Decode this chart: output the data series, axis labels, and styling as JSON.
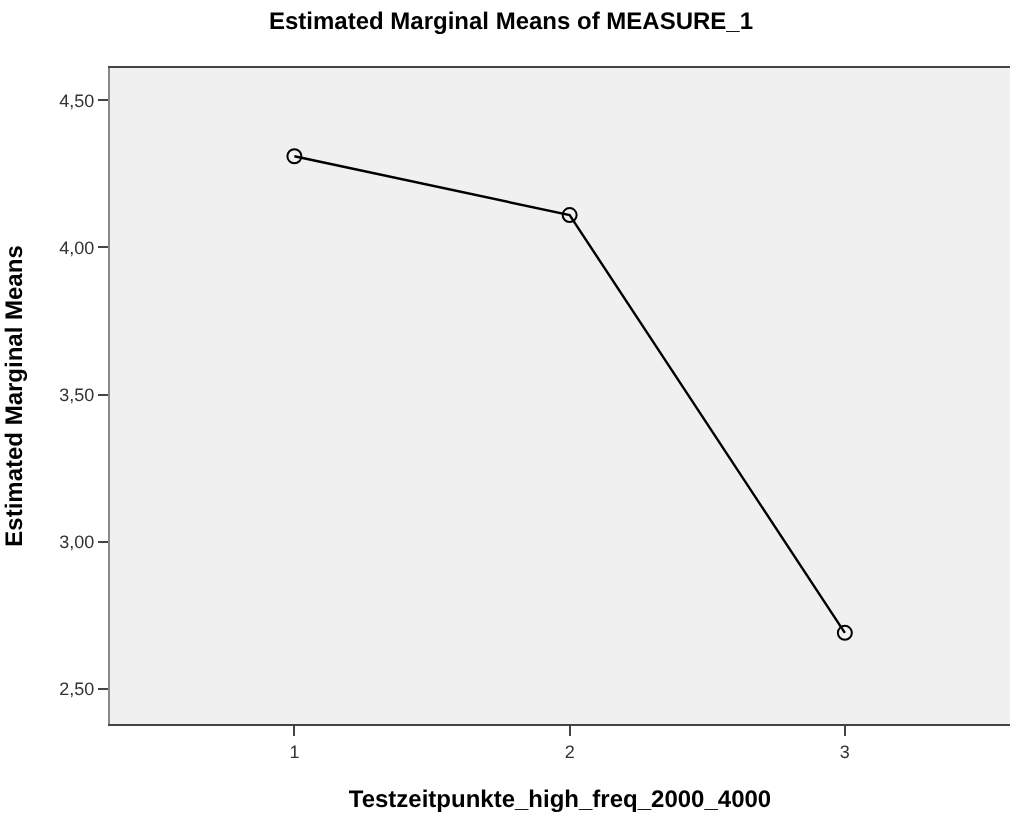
{
  "chart_data": {
    "type": "line",
    "title": "Estimated Marginal Means of MEASURE_1",
    "xlabel": "Testzeitpunkte_high_freq_2000_4000",
    "ylabel": "Estimated Marginal Means",
    "x": [
      1,
      2,
      3
    ],
    "series": [
      {
        "color": "#000000",
        "values": [
          4.31,
          4.11,
          2.69
        ]
      }
    ],
    "xlim": [
      0.33,
      3.6
    ],
    "xticks": [
      1,
      2,
      3
    ],
    "ylim": [
      2.38,
      4.61
    ],
    "yticks": [
      {
        "value": 2.5,
        "label": "2,50"
      },
      {
        "value": 3.0,
        "label": "3,00"
      },
      {
        "value": 3.5,
        "label": "3,50"
      },
      {
        "value": 4.0,
        "label": "4,00"
      },
      {
        "value": 4.5,
        "label": "4,50"
      }
    ],
    "marker": "circle",
    "line_style": "solid",
    "grid": false
  }
}
